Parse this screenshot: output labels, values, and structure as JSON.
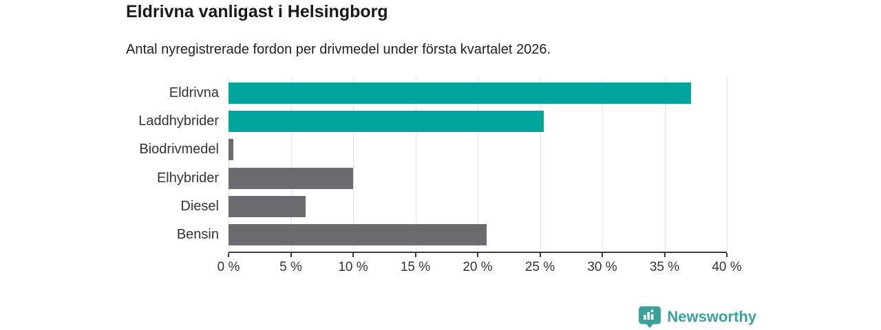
{
  "header": {
    "title": "Eldrivna vanligast i Helsingborg",
    "subtitle": "Antal nyregistrerade fordon per drivmedel under första kvartalet 2026."
  },
  "chart_data": {
    "type": "bar",
    "orientation": "horizontal",
    "title": "Eldrivna vanligast i Helsingborg",
    "subtitle": "Antal nyregistrerade fordon per drivmedel under första kvartalet 2026.",
    "categories": [
      "Eldrivna",
      "Laddhybrider",
      "Biodrivmedel",
      "Elhybrider",
      "Diesel",
      "Bensin"
    ],
    "values": [
      37.1,
      25.3,
      0.4,
      10.0,
      6.2,
      20.7
    ],
    "unit": "%",
    "bar_colors": [
      "#00a49b",
      "#00a49b",
      "#6c6c70",
      "#6c6c70",
      "#6c6c70",
      "#6c6c70"
    ],
    "highlight_color": "#00a49b",
    "base_color": "#6c6c70",
    "xlim": [
      0,
      40
    ],
    "x_tick_step": 5,
    "x_tick_labels": [
      "0 %",
      "5 %",
      "10 %",
      "15 %",
      "20 %",
      "25 %",
      "30 %",
      "35 %",
      "40 %"
    ],
    "grid": true,
    "legend": false,
    "value_labels": false
  },
  "footer": {
    "brand": "Newsworthy",
    "brand_color": "#3aa29b",
    "logo_icon": "bar-chart-pin-icon"
  }
}
